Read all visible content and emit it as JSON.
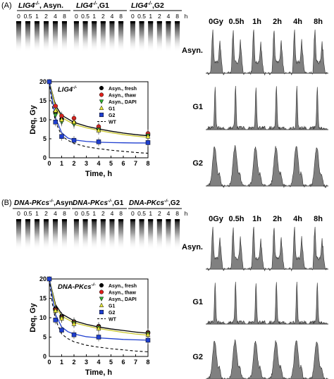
{
  "panels": [
    {
      "label": "(A)",
      "gels": [
        {
          "title_gene": "LIG4",
          "title_sup": "-/-",
          "title_rest": ", Asyn."
        },
        {
          "title_gene": "LIG4",
          "title_sup": "-/-",
          "title_rest": ",G1"
        },
        {
          "title_gene": "LIG4",
          "title_sup": "-/-",
          "title_rest": ",G2"
        }
      ],
      "time_labels": [
        "0",
        "0.5",
        "1",
        "2",
        "4",
        "8",
        "h"
      ],
      "flow_times": [
        "0Gy",
        "0.5h",
        "1h",
        "2h",
        "4h",
        "8h"
      ],
      "flow_rows": [
        "Asyn.",
        "G1",
        "G2"
      ]
    },
    {
      "label": "(B)",
      "gels": [
        {
          "title_gene": "DNA-PKcs",
          "title_sup": "-/-",
          "title_rest": ",Asyn."
        },
        {
          "title_gene": "DNA-PKcs",
          "title_sup": "-/-",
          "title_rest": ",G1"
        },
        {
          "title_gene": "DNA-PKcs",
          "title_sup": "-/-",
          "title_rest": ",G2"
        }
      ],
      "time_labels": [
        "0",
        "0.5",
        "1",
        "2",
        "4",
        "8",
        "h"
      ],
      "flow_times": [
        "0Gy",
        "0.5h",
        "1h",
        "2h",
        "4h",
        "8h"
      ],
      "flow_rows": [
        "Asyn.",
        "G1",
        "G2"
      ]
    }
  ],
  "colors": {
    "fresh": "#000000",
    "thaw": "#e0201b",
    "dapi": "#2fae2f",
    "g1": "#e8e83a",
    "g2": "#1f3fd0",
    "wt": "#000000",
    "flow": "#808080"
  },
  "chart_data": [
    {
      "type": "line",
      "inset_title": "LIG4-/-",
      "title_gene": "LIG4",
      "title_sup": "-/-",
      "xlabel": "Time, h",
      "ylabel": "Deq, Gy",
      "xlim": [
        0,
        8
      ],
      "ylim": [
        0,
        20
      ],
      "xticks": [
        0,
        1,
        2,
        3,
        4,
        5,
        6,
        7,
        8
      ],
      "yticks": [
        0,
        5,
        10,
        15,
        20
      ],
      "legend_position": "top-right",
      "series": [
        {
          "name": "Asyn., fresh",
          "key": "fresh",
          "marker": "circle",
          "x": [
            0,
            0.5,
            1,
            2,
            4,
            8
          ],
          "y": [
            20,
            12,
            10.2,
            9.2,
            7.6,
            6.0
          ]
        },
        {
          "name": "Asyn., thaw",
          "key": "thaw",
          "marker": "circle",
          "x": [
            0,
            0.5,
            1,
            2,
            4,
            8
          ],
          "y": [
            20,
            13.6,
            11.0,
            10.4,
            8.2,
            6.4
          ]
        },
        {
          "name": "Asyn., DAPI",
          "key": "dapi",
          "marker": "triangle-down",
          "x": [
            0,
            0.5,
            1,
            2,
            4,
            8
          ],
          "y": [
            20,
            11.2,
            9.4,
            8.8,
            7.4,
            5.8
          ]
        },
        {
          "name": "G1",
          "key": "g1",
          "marker": "triangle-up",
          "x": [
            0,
            0.5,
            1,
            2,
            4,
            8
          ],
          "y": [
            20,
            12.4,
            10.0,
            9.4,
            7.2,
            5.6
          ]
        },
        {
          "name": "G2",
          "key": "g2",
          "marker": "square",
          "x": [
            0,
            0.5,
            1,
            2,
            4,
            8
          ],
          "y": [
            20,
            9.4,
            5.6,
            4.6,
            4.2,
            4.0
          ]
        },
        {
          "name": "WT",
          "key": "wt",
          "marker": "none",
          "dashed": true,
          "x": [
            0,
            0.25,
            0.5,
            1,
            1.5,
            2,
            3,
            4,
            5,
            6,
            7,
            8
          ],
          "y": [
            20,
            13.5,
            9.5,
            5.8,
            4.6,
            3.8,
            2.9,
            2.4,
            2.0,
            1.7,
            1.4,
            1.2
          ]
        }
      ],
      "fits": [
        {
          "key": "fresh",
          "x": [
            0,
            0.5,
            1,
            2,
            3,
            4,
            5,
            6,
            7,
            8
          ],
          "y": [
            20,
            13.8,
            11.2,
            9.3,
            8.3,
            7.6,
            7.0,
            6.5,
            6.1,
            5.8
          ]
        },
        {
          "key": "g1",
          "x": [
            0,
            0.5,
            1,
            2,
            3,
            4,
            5,
            6,
            7,
            8
          ],
          "y": [
            20,
            13.2,
            10.6,
            8.8,
            7.9,
            7.2,
            6.6,
            6.1,
            5.7,
            5.4
          ]
        },
        {
          "key": "g2",
          "x": [
            0,
            0.5,
            1,
            1.5,
            2,
            3,
            4,
            5,
            6,
            7,
            8
          ],
          "y": [
            20,
            10.5,
            6.6,
            5.2,
            4.7,
            4.3,
            4.1,
            4.0,
            3.95,
            3.9,
            3.9
          ]
        }
      ]
    },
    {
      "type": "line",
      "inset_title": "DNA-PKcs-/-",
      "title_gene": "DNA-PKcs",
      "title_sup": "-/-",
      "xlabel": "Time, h",
      "ylabel": "Deq, Gy",
      "xlim": [
        0,
        8
      ],
      "ylim": [
        0,
        20
      ],
      "xticks": [
        0,
        1,
        2,
        3,
        4,
        5,
        6,
        7,
        8
      ],
      "yticks": [
        0,
        5,
        10,
        15,
        20
      ],
      "legend_position": "top-right",
      "series": [
        {
          "name": "Asyn., fresh",
          "key": "fresh",
          "marker": "circle",
          "x": [
            0,
            0.5,
            1,
            2,
            4,
            8
          ],
          "y": [
            20,
            12.4,
            10.4,
            9.0,
            7.8,
            6.2
          ]
        },
        {
          "name": "Asyn., thaw",
          "key": "thaw",
          "marker": "circle",
          "x": [
            0,
            0.5,
            1,
            2,
            4,
            8
          ],
          "y": [
            20,
            12.0,
            10.0,
            8.8,
            7.6,
            6.0
          ]
        },
        {
          "name": "Asyn., DAPI",
          "key": "dapi",
          "marker": "triangle-down",
          "x": [
            0,
            0.5,
            1,
            2,
            4,
            8
          ],
          "y": [
            20,
            11.6,
            9.8,
            8.6,
            7.4,
            5.8
          ]
        },
        {
          "name": "G1",
          "key": "g1",
          "marker": "triangle-up",
          "x": [
            0,
            0.5,
            1,
            2,
            4,
            8
          ],
          "y": [
            20,
            11.8,
            9.8,
            8.4,
            7.2,
            5.6
          ]
        },
        {
          "name": "G2",
          "key": "g2",
          "marker": "square",
          "x": [
            0,
            0.5,
            1,
            2,
            4,
            8
          ],
          "y": [
            20,
            9.4,
            6.8,
            5.6,
            5.0,
            4.2
          ]
        },
        {
          "name": "WT",
          "key": "wt",
          "marker": "none",
          "dashed": true,
          "x": [
            0,
            0.25,
            0.5,
            1,
            1.5,
            2,
            3,
            4,
            5,
            6,
            7,
            8
          ],
          "y": [
            20,
            13.5,
            9.5,
            5.8,
            4.6,
            3.8,
            2.9,
            2.4,
            2.0,
            1.7,
            1.4,
            1.2
          ]
        }
      ],
      "fits": [
        {
          "key": "fresh",
          "x": [
            0,
            0.5,
            1,
            2,
            3,
            4,
            5,
            6,
            7,
            8
          ],
          "y": [
            20,
            13.4,
            11.0,
            9.2,
            8.3,
            7.6,
            7.1,
            6.7,
            6.3,
            6.0
          ]
        },
        {
          "key": "g1",
          "x": [
            0,
            0.5,
            1,
            2,
            3,
            4,
            5,
            6,
            7,
            8
          ],
          "y": [
            20,
            12.8,
            10.4,
            8.7,
            7.9,
            7.2,
            6.7,
            6.2,
            5.8,
            5.5
          ]
        },
        {
          "key": "g2",
          "x": [
            0,
            0.5,
            1,
            1.5,
            2,
            3,
            4,
            5,
            6,
            7,
            8
          ],
          "y": [
            20,
            10.8,
            7.6,
            6.4,
            5.8,
            5.1,
            4.8,
            4.6,
            4.4,
            4.3,
            4.2
          ]
        }
      ]
    }
  ]
}
